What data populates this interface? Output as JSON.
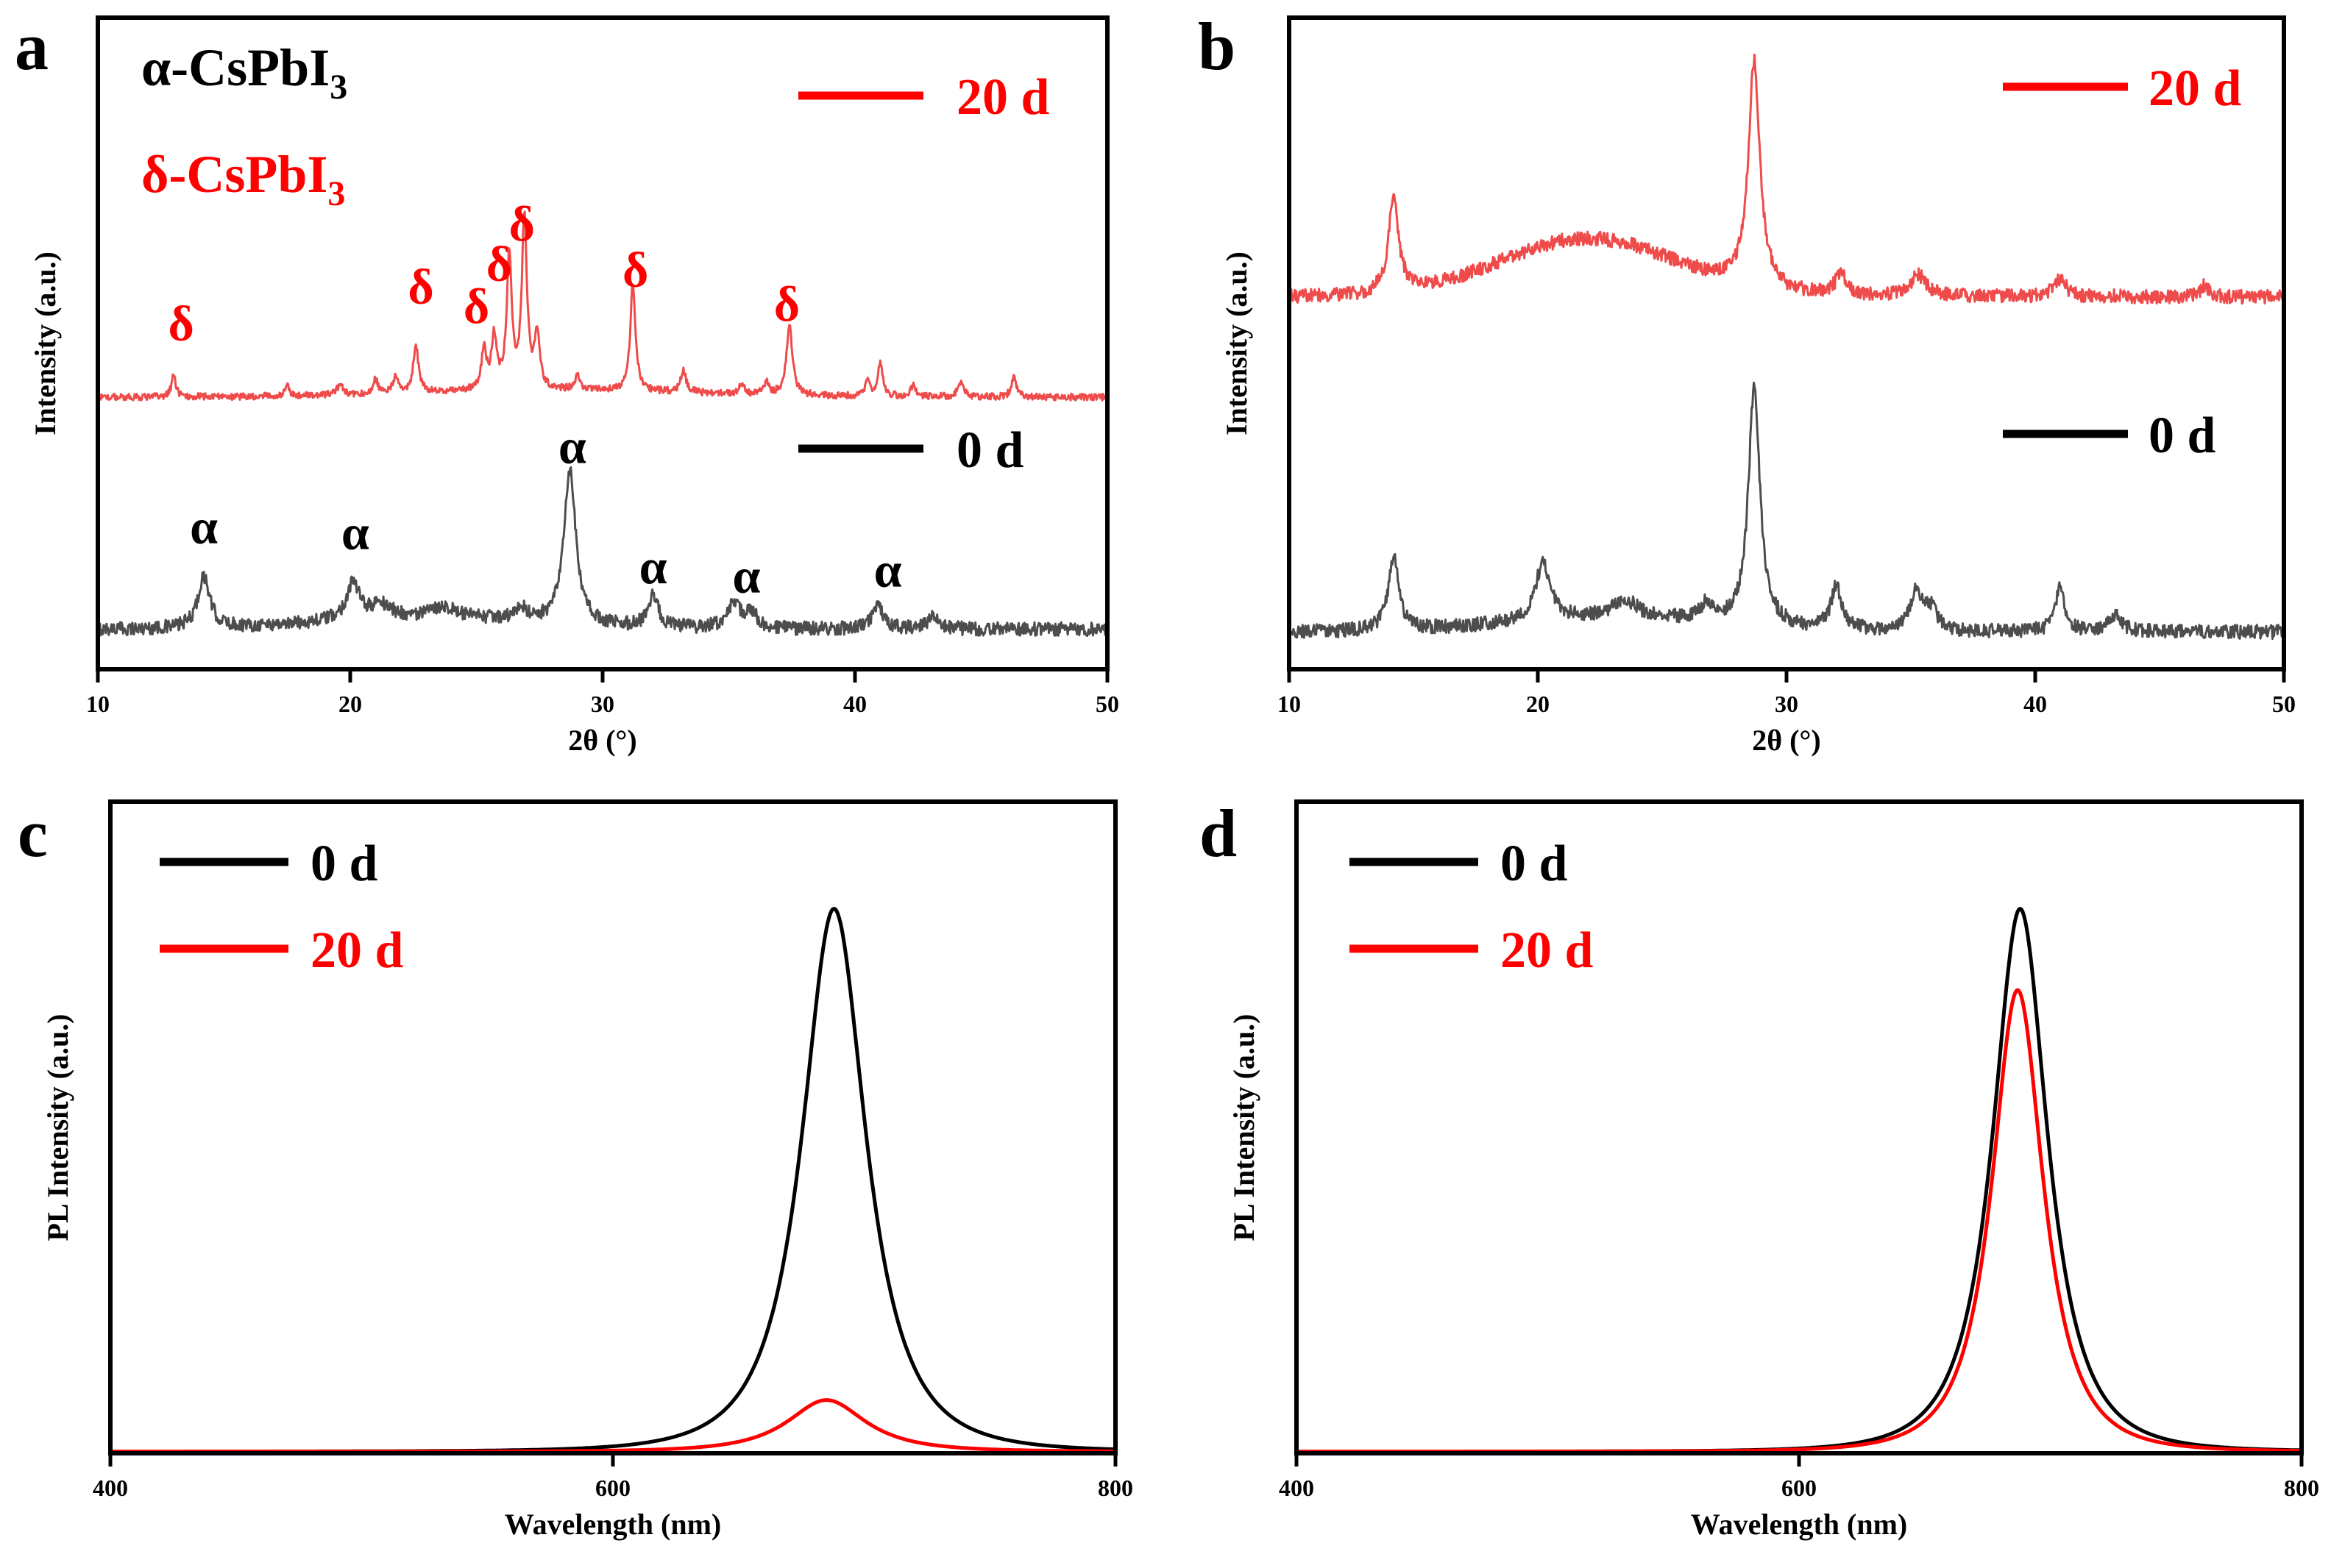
{
  "figure": {
    "colors": {
      "black": "#000000",
      "gray": "#4d4d4d",
      "red": "#ff0000",
      "light_red": "#ef4b4b"
    }
  },
  "chart_data": [
    {
      "panel_label": "a",
      "type": "line",
      "xlabel": "2θ (°)",
      "ylabel": "Intensity (a.u.)",
      "xlim": [
        10,
        50
      ],
      "ylim": [
        -0.2,
        5.5
      ],
      "xticks": [
        "10",
        "20",
        "30",
        "40",
        "50"
      ],
      "title_lines": [
        {
          "text": "α-CsPbI",
          "sub": "3",
          "color": "#000000"
        },
        {
          "text": "δ-CsPbI",
          "sub": "3",
          "color": "#ff0000"
        }
      ],
      "legend": [
        {
          "label": "20 d",
          "color": "#ff0000"
        },
        {
          "label": "0  d",
          "color": "#000000"
        }
      ],
      "series": [
        {
          "name": "0 d",
          "color": "#4d4d4d",
          "baseline": 0.15,
          "noise": 0.06,
          "bump": {
            "center": 23,
            "width": 6,
            "height": 0.1
          },
          "peaks": [
            {
              "x": 14.2,
              "h": 0.45,
              "w": 0.28
            },
            {
              "x": 20.1,
              "h": 0.32,
              "w": 0.3
            },
            {
              "x": 21.2,
              "h": 0.12,
              "w": 0.5
            },
            {
              "x": 23.7,
              "h": 0.1,
              "w": 0.5
            },
            {
              "x": 26.8,
              "h": 0.1,
              "w": 0.3
            },
            {
              "x": 28.7,
              "h": 1.35,
              "w": 0.28
            },
            {
              "x": 32.0,
              "h": 0.28,
              "w": 0.25
            },
            {
              "x": 35.2,
              "h": 0.2,
              "w": 0.35
            },
            {
              "x": 35.9,
              "h": 0.12,
              "w": 0.3
            },
            {
              "x": 40.9,
              "h": 0.22,
              "w": 0.25
            },
            {
              "x": 43.1,
              "h": 0.1,
              "w": 0.3
            }
          ]
        },
        {
          "name": "20 d",
          "color": "#ef4b4b",
          "baseline": 2.18,
          "noise": 0.03,
          "bump": {
            "center": 28,
            "width": 8,
            "height": 0.06
          },
          "peaks": [
            {
              "x": 13.0,
              "h": 0.2,
              "w": 0.1
            },
            {
              "x": 17.5,
              "h": 0.08,
              "w": 0.12
            },
            {
              "x": 19.6,
              "h": 0.1,
              "w": 0.12
            },
            {
              "x": 21.0,
              "h": 0.12,
              "w": 0.12
            },
            {
              "x": 21.8,
              "h": 0.15,
              "w": 0.12
            },
            {
              "x": 22.6,
              "h": 0.42,
              "w": 0.12
            },
            {
              "x": 25.3,
              "h": 0.35,
              "w": 0.12
            },
            {
              "x": 25.7,
              "h": 0.45,
              "w": 0.12
            },
            {
              "x": 26.3,
              "h": 1.15,
              "w": 0.12
            },
            {
              "x": 26.9,
              "h": 1.5,
              "w": 0.12
            },
            {
              "x": 27.4,
              "h": 0.48,
              "w": 0.12
            },
            {
              "x": 29.0,
              "h": 0.12,
              "w": 0.12
            },
            {
              "x": 31.2,
              "h": 0.95,
              "w": 0.12
            },
            {
              "x": 33.2,
              "h": 0.2,
              "w": 0.12
            },
            {
              "x": 35.5,
              "h": 0.1,
              "w": 0.12
            },
            {
              "x": 36.5,
              "h": 0.1,
              "w": 0.12
            },
            {
              "x": 37.4,
              "h": 0.62,
              "w": 0.14
            },
            {
              "x": 40.5,
              "h": 0.12,
              "w": 0.12
            },
            {
              "x": 41.0,
              "h": 0.3,
              "w": 0.12
            },
            {
              "x": 42.3,
              "h": 0.1,
              "w": 0.12
            },
            {
              "x": 44.2,
              "h": 0.12,
              "w": 0.15
            },
            {
              "x": 46.3,
              "h": 0.18,
              "w": 0.12
            }
          ]
        }
      ],
      "annotations": [
        {
          "text": "δ",
          "x": 13.3,
          "y": 2.68,
          "color": "#ff0000"
        },
        {
          "text": "δ",
          "x": 22.8,
          "y": 3.0,
          "color": "#ff0000"
        },
        {
          "text": "δ",
          "x": 25.0,
          "y": 2.83,
          "color": "#ff0000"
        },
        {
          "text": "δ",
          "x": 25.9,
          "y": 3.2,
          "color": "#ff0000"
        },
        {
          "text": "δ",
          "x": 26.8,
          "y": 3.55,
          "color": "#ff0000"
        },
        {
          "text": "δ",
          "x": 31.3,
          "y": 3.15,
          "color": "#ff0000"
        },
        {
          "text": "δ",
          "x": 37.3,
          "y": 2.85,
          "color": "#ff0000"
        },
        {
          "text": "α",
          "x": 14.2,
          "y": 0.9,
          "color": "#000000"
        },
        {
          "text": "α",
          "x": 20.2,
          "y": 0.85,
          "color": "#000000"
        },
        {
          "text": "α",
          "x": 28.8,
          "y": 1.6,
          "color": "#000000"
        },
        {
          "text": "α",
          "x": 32.0,
          "y": 0.55,
          "color": "#000000"
        },
        {
          "text": "α",
          "x": 35.7,
          "y": 0.47,
          "color": "#000000"
        },
        {
          "text": "α",
          "x": 41.3,
          "y": 0.52,
          "color": "#000000"
        }
      ]
    },
    {
      "panel_label": "b",
      "type": "line",
      "xlabel": "2θ (°)",
      "ylabel": "Intensity (a.u.)",
      "xlim": [
        10,
        50
      ],
      "ylim": [
        -0.2,
        5.4
      ],
      "xticks": [
        "10",
        "20",
        "30",
        "40",
        "50"
      ],
      "legend": [
        {
          "label": "20 d",
          "color": "#ff0000"
        },
        {
          "label": "0  d",
          "color": "#000000"
        }
      ],
      "series": [
        {
          "name": "0 d",
          "color": "#4d4d4d",
          "baseline": 0.12,
          "noise": 0.06,
          "bump": {
            "center": 23,
            "width": 6,
            "height": 0.12
          },
          "peaks": [
            {
              "x": 14.2,
              "h": 0.65,
              "w": 0.25
            },
            {
              "x": 20.2,
              "h": 0.5,
              "w": 0.35
            },
            {
              "x": 23.5,
              "h": 0.15,
              "w": 0.6
            },
            {
              "x": 26.8,
              "h": 0.15,
              "w": 0.3
            },
            {
              "x": 28.7,
              "h": 2.05,
              "w": 0.28
            },
            {
              "x": 32.0,
              "h": 0.38,
              "w": 0.25
            },
            {
              "x": 35.2,
              "h": 0.32,
              "w": 0.3
            },
            {
              "x": 35.8,
              "h": 0.18,
              "w": 0.3
            },
            {
              "x": 41.0,
              "h": 0.4,
              "w": 0.22
            },
            {
              "x": 43.2,
              "h": 0.15,
              "w": 0.3
            }
          ]
        },
        {
          "name": "20 d",
          "color": "#ef4b4b",
          "baseline": 3.0,
          "noise": 0.06,
          "bump": {
            "center": 22,
            "width": 5,
            "height": 0.5
          },
          "peaks": [
            {
              "x": 14.2,
              "h": 0.8,
              "w": 0.25
            },
            {
              "x": 28.7,
              "h": 1.95,
              "w": 0.28
            },
            {
              "x": 32.2,
              "h": 0.18,
              "w": 0.3
            },
            {
              "x": 35.3,
              "h": 0.18,
              "w": 0.4
            },
            {
              "x": 41.0,
              "h": 0.15,
              "w": 0.3
            },
            {
              "x": 46.8,
              "h": 0.1,
              "w": 0.2
            }
          ]
        }
      ]
    },
    {
      "panel_label": "c",
      "type": "line",
      "xlabel": "Wavelength (nm)",
      "ylabel": "PL Intensity (a.u.)",
      "xlim": [
        400,
        800
      ],
      "ylim": [
        0,
        1.2
      ],
      "xticks": [
        "400",
        "600",
        "800"
      ],
      "legend": [
        {
          "label": "0  d",
          "color": "#000000"
        },
        {
          "label": "20 d",
          "color": "#ff0000"
        }
      ],
      "series": [
        {
          "name": "0 d",
          "color": "#000000",
          "peak_x": 688,
          "peak_y": 1.0,
          "fwhm": 36
        },
        {
          "name": "20 d",
          "color": "#ff0000",
          "peak_x": 685,
          "peak_y": 0.095,
          "fwhm": 44
        }
      ]
    },
    {
      "panel_label": "d",
      "type": "line",
      "xlabel": "Wavelength (nm)",
      "ylabel": "PL Intensity (a.u.)",
      "xlim": [
        400,
        800
      ],
      "ylim": [
        0,
        1.2
      ],
      "xticks": [
        "400",
        "600",
        "800"
      ],
      "legend": [
        {
          "label": "0  d",
          "color": "#000000"
        },
        {
          "label": "20 d",
          "color": "#ff0000"
        }
      ],
      "series": [
        {
          "name": "0 d",
          "color": "#000000",
          "peak_x": 688,
          "peak_y": 1.0,
          "fwhm": 31
        },
        {
          "name": "20 d",
          "color": "#ff0000",
          "peak_x": 687,
          "peak_y": 0.85,
          "fwhm": 29
        }
      ]
    }
  ]
}
